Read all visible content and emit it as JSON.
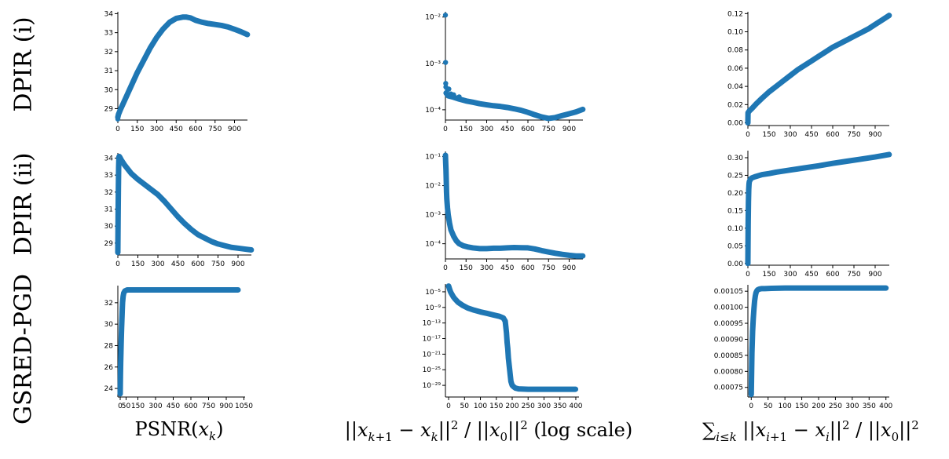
{
  "row_labels": [
    "DPIR (i)",
    "DPIR (ii)",
    "GSRED-PGD"
  ],
  "column_labels": [
    "PSNR(x_k)",
    "||x_{k+1} − x_k||² / ||x_0||² (log scale)",
    "∑_{i≤k} ||x_{i+1} − x_i||² / ||x_0||²"
  ],
  "colors": {
    "series": "#1f77b4",
    "axis": "#000000",
    "background": "#ffffff"
  },
  "chart_data": [
    {
      "id": "dpir-i-psnr",
      "type": "line",
      "row": "DPIR (i)",
      "column": "PSNR(x_k)",
      "xlim": [
        0,
        1000
      ],
      "ylim": [
        28.4,
        34.1
      ],
      "yscale": "linear",
      "xticks": [
        0,
        150,
        300,
        450,
        600,
        750,
        900
      ],
      "yticks": [
        29,
        30,
        31,
        32,
        33,
        34
      ],
      "ytick_labels": [
        "29",
        "30",
        "31",
        "32",
        "33",
        "34"
      ],
      "curve_x": [
        0,
        5,
        20,
        50,
        100,
        150,
        200,
        250,
        300,
        350,
        400,
        450,
        500,
        530,
        560,
        600,
        650,
        700,
        750,
        800,
        850,
        900,
        950,
        999
      ],
      "curve_y": [
        28.55,
        28.7,
        28.95,
        29.4,
        30.15,
        30.9,
        31.55,
        32.2,
        32.75,
        33.2,
        33.55,
        33.75,
        33.82,
        33.82,
        33.78,
        33.65,
        33.55,
        33.48,
        33.43,
        33.38,
        33.3,
        33.18,
        33.05,
        32.9
      ],
      "points": [
        [
          0,
          28.45
        ]
      ]
    },
    {
      "id": "dpir-i-diff",
      "type": "line",
      "row": "DPIR (i)",
      "column": "||x_{k+1} − x_k||² / ||x_0||² (log scale)",
      "xlim": [
        0,
        1000
      ],
      "ylim": [
        6e-05,
        0.013
      ],
      "yscale": "log",
      "xticks": [
        0,
        150,
        300,
        450,
        600,
        750,
        900
      ],
      "yticks": [
        0.0001,
        0.001,
        0.01
      ],
      "ytick_labels": [
        "10⁻⁴",
        "10⁻³",
        "10⁻²"
      ],
      "curve_x": [
        5,
        20,
        50,
        100,
        150,
        200,
        250,
        300,
        350,
        400,
        450,
        500,
        550,
        600,
        650,
        700,
        750,
        800,
        850,
        900,
        950,
        999
      ],
      "curve_y": [
        0.00023,
        0.0002,
        0.00019,
        0.00017,
        0.000155,
        0.000145,
        0.000135,
        0.000128,
        0.000122,
        0.000118,
        0.000112,
        0.000105,
        9.75e-05,
        8.8e-05,
        7.8e-05,
        7e-05,
        6.5e-05,
        6.8e-05,
        7.5e-05,
        8.2e-05,
        9e-05,
        0.000102
      ],
      "points": [
        [
          0,
          0.011
        ],
        [
          1,
          0.00105
        ],
        [
          2,
          0.00037
        ],
        [
          3,
          0.00031
        ],
        [
          15,
          0.00027
        ],
        [
          25,
          0.00028
        ],
        [
          40,
          0.00022
        ],
        [
          60,
          0.00021
        ],
        [
          100,
          0.00019
        ]
      ]
    },
    {
      "id": "dpir-i-cum",
      "type": "line",
      "row": "DPIR (i)",
      "column": "∑_{i≤k} ||x_{i+1} − x_i||² / ||x_0||²",
      "xlim": [
        0,
        1000
      ],
      "ylim": [
        -0.003,
        0.122
      ],
      "yscale": "linear",
      "xticks": [
        0,
        150,
        300,
        450,
        600,
        750,
        900
      ],
      "yticks": [
        0,
        0.02,
        0.04,
        0.06,
        0.08,
        0.1,
        0.12
      ],
      "ytick_labels": [
        "0.00",
        "0.02",
        "0.04",
        "0.06",
        "0.08",
        "0.10",
        "0.12"
      ],
      "curve_x": [
        0,
        1,
        10,
        30,
        60,
        100,
        150,
        200,
        250,
        300,
        350,
        400,
        450,
        500,
        550,
        600,
        650,
        700,
        750,
        800,
        850,
        900,
        950,
        999
      ],
      "curve_y": [
        0.0,
        0.011,
        0.013,
        0.016,
        0.021,
        0.027,
        0.034,
        0.04,
        0.046,
        0.052,
        0.058,
        0.063,
        0.068,
        0.073,
        0.078,
        0.083,
        0.087,
        0.091,
        0.095,
        0.099,
        0.103,
        0.108,
        0.113,
        0.118
      ],
      "points": [
        [
          0,
          0.0
        ]
      ]
    },
    {
      "id": "dpir-ii-psnr",
      "type": "line",
      "row": "DPIR (ii)",
      "column": "PSNR(x_k)",
      "xlim": [
        0,
        1000
      ],
      "ylim": [
        28.3,
        34.3
      ],
      "yscale": "linear",
      "xticks": [
        0,
        150,
        300,
        450,
        600,
        750,
        900
      ],
      "yticks": [
        29,
        30,
        31,
        32,
        33,
        34
      ],
      "ytick_labels": [
        "29",
        "30",
        "31",
        "32",
        "33",
        "34"
      ],
      "curve_x": [
        0,
        2,
        4,
        6,
        8,
        10,
        15,
        25,
        50,
        100,
        150,
        200,
        250,
        300,
        350,
        400,
        450,
        500,
        550,
        600,
        650,
        700,
        750,
        800,
        850,
        900,
        950,
        999
      ],
      "curve_y": [
        28.45,
        30.55,
        32.2,
        33.45,
        34.05,
        34.1,
        34.05,
        33.9,
        33.6,
        33.1,
        32.75,
        32.45,
        32.15,
        31.85,
        31.45,
        31.0,
        30.55,
        30.15,
        29.8,
        29.5,
        29.3,
        29.1,
        28.95,
        28.85,
        28.75,
        28.7,
        28.65,
        28.6
      ],
      "points": [
        [
          0,
          28.45
        ],
        [
          2,
          30.55
        ],
        [
          4,
          32.2
        ],
        [
          6,
          33.45
        ],
        [
          8,
          34.05
        ]
      ]
    },
    {
      "id": "dpir-ii-diff",
      "type": "line",
      "row": "DPIR (ii)",
      "column": "||x_{k+1} − x_k||² / ||x_0||² (log scale)",
      "xlim": [
        0,
        1000
      ],
      "ylim": [
        3e-05,
        0.15
      ],
      "yscale": "log",
      "xticks": [
        0,
        150,
        300,
        450,
        600,
        750,
        900
      ],
      "yticks": [
        0.0001,
        0.001,
        0.01,
        0.1
      ],
      "ytick_labels": [
        "10⁻⁴",
        "10⁻³",
        "10⁻²",
        "10⁻¹"
      ],
      "curve_x": [
        0,
        2,
        4,
        6,
        8,
        10,
        15,
        20,
        30,
        40,
        60,
        80,
        100,
        130,
        160,
        200,
        250,
        300,
        350,
        400,
        450,
        500,
        550,
        600,
        650,
        700,
        750,
        800,
        850,
        900,
        950,
        999
      ],
      "curve_y": [
        0.11,
        0.06,
        0.035,
        0.015,
        0.006,
        0.0035,
        0.0017,
        0.001,
        0.0005,
        0.0003,
        0.00018,
        0.000125,
        0.0001,
        8.5e-05,
        7.8e-05,
        7.2e-05,
        6.8e-05,
        6.8e-05,
        7e-05,
        7e-05,
        7.2e-05,
        7.4e-05,
        7.3e-05,
        7.2e-05,
        6.6e-05,
        5.8e-05,
        5.2e-05,
        4.7e-05,
        4.3e-05,
        4e-05,
        3.8e-05,
        3.8e-05
      ],
      "points": [
        [
          0,
          0.11
        ],
        [
          2,
          0.06
        ],
        [
          4,
          0.035
        ],
        [
          6,
          0.015
        ],
        [
          8,
          0.006
        ],
        [
          10,
          0.0035
        ],
        [
          15,
          0.0017
        ],
        [
          20,
          0.001
        ]
      ]
    },
    {
      "id": "dpir-ii-cum",
      "type": "line",
      "row": "DPIR (ii)",
      "column": "∑_{i≤k} ||x_{i+1} − x_i||² / ||x_0||²",
      "xlim": [
        0,
        1000
      ],
      "ylim": [
        -0.005,
        0.32
      ],
      "yscale": "linear",
      "xticks": [
        0,
        150,
        300,
        450,
        600,
        750,
        900
      ],
      "yticks": [
        0,
        0.05,
        0.1,
        0.15,
        0.2,
        0.25,
        0.3
      ],
      "ytick_labels": [
        "0.00",
        "0.05",
        "0.10",
        "0.15",
        "0.20",
        "0.25",
        "0.30"
      ],
      "curve_x": [
        0,
        2,
        4,
        6,
        8,
        10,
        15,
        20,
        30,
        50,
        100,
        150,
        200,
        300,
        400,
        500,
        600,
        700,
        800,
        900,
        999
      ],
      "curve_y": [
        0.0,
        0.115,
        0.175,
        0.21,
        0.225,
        0.232,
        0.236,
        0.24,
        0.243,
        0.246,
        0.252,
        0.255,
        0.259,
        0.265,
        0.271,
        0.277,
        0.284,
        0.29,
        0.296,
        0.302,
        0.309
      ],
      "points": [
        [
          0,
          0.0
        ],
        [
          2,
          0.115
        ],
        [
          4,
          0.175
        ],
        [
          6,
          0.21
        ],
        [
          8,
          0.225
        ]
      ]
    },
    {
      "id": "gsred-psnr",
      "type": "line",
      "row": "GSRED-PGD",
      "column": "PSNR(x_k)",
      "xlim": [
        -20,
        1060
      ],
      "ylim": [
        23.2,
        33.6
      ],
      "yscale": "linear",
      "xticks": [
        0,
        50,
        150,
        300,
        450,
        600,
        750,
        900,
        1050
      ],
      "xtick_labels": [
        "0",
        "50",
        "150",
        "300",
        "450",
        "600",
        "750",
        "900",
        "1050"
      ],
      "yticks": [
        24,
        26,
        28,
        30,
        32
      ],
      "ytick_labels": [
        "24",
        "26",
        "28",
        "30",
        "32"
      ],
      "curve_x": [
        0,
        2,
        4,
        6,
        8,
        10,
        12,
        14,
        16,
        18,
        20,
        25,
        30,
        40,
        50,
        60,
        80,
        100,
        200,
        400,
        600,
        800,
        1000
      ],
      "curve_y": [
        23.5,
        25.2,
        26.4,
        27.3,
        28.2,
        29.0,
        29.7,
        30.3,
        30.9,
        31.5,
        32.0,
        32.6,
        32.9,
        33.1,
        33.15,
        33.2,
        33.2,
        33.2,
        33.2,
        33.2,
        33.2,
        33.2,
        33.2
      ],
      "points": [
        [
          0,
          23.5
        ],
        [
          2,
          25.2
        ],
        [
          4,
          26.4
        ],
        [
          6,
          27.3
        ],
        [
          8,
          28.2
        ],
        [
          10,
          29.0
        ],
        [
          12,
          29.7
        ],
        [
          14,
          30.3
        ],
        [
          16,
          30.9
        ],
        [
          18,
          31.5
        ],
        [
          20,
          32.0
        ],
        [
          25,
          32.6
        ],
        [
          30,
          32.9
        ]
      ]
    },
    {
      "id": "gsred-diff",
      "type": "line",
      "row": "GSRED-PGD",
      "column": "||x_{k+1} − x_k||² / ||x_0||² (log scale)",
      "xlim": [
        -10,
        410
      ],
      "ylim": [
        1e-32,
        0.001
      ],
      "yscale": "log",
      "xticks": [
        0,
        50,
        100,
        150,
        200,
        250,
        300,
        350,
        400
      ],
      "yticks": [
        1e-29,
        1e-25,
        1e-21,
        1e-17,
        1e-13,
        1e-09,
        1e-05
      ],
      "ytick_labels": [
        "10⁻²⁹",
        "10⁻²⁵",
        "10⁻²¹",
        "10⁻¹⁷",
        "10⁻¹³",
        "10⁻⁹",
        "10⁻⁵"
      ],
      "curve_x": [
        0,
        3,
        6,
        10,
        15,
        20,
        30,
        45,
        60,
        80,
        100,
        120,
        140,
        160,
        172,
        178,
        180,
        182,
        184,
        186,
        188,
        190,
        192,
        194,
        196,
        198,
        200,
        205,
        210,
        220,
        250,
        300,
        350,
        399
      ],
      "curve_y": [
        0.0003,
        5e-05,
        1e-05,
        2.5e-06,
        5e-07,
        1.5e-07,
        2e-08,
        3e-09,
        7e-10,
        2e-10,
        7e-11,
        3e-11,
        1.2e-11,
        5e-12,
        2e-12,
        3e-13,
        1e-14,
        3e-16,
        1e-18,
        3e-20,
        1e-22,
        3e-24,
        1e-25,
        3e-27,
        1e-28,
        3e-29,
        1e-29,
        4e-30,
        2e-30,
        1.2e-30,
        1e-30,
        1e-30,
        1e-30,
        1e-30
      ],
      "points": [
        [
          0,
          0.0003
        ],
        [
          3,
          5e-05
        ],
        [
          6,
          1e-05
        ],
        [
          180,
          1e-14
        ],
        [
          182,
          3e-16
        ],
        [
          184,
          1e-18
        ],
        [
          186,
          3e-20
        ],
        [
          188,
          1e-22
        ],
        [
          190,
          3e-24
        ],
        [
          194,
          3e-27
        ]
      ]
    },
    {
      "id": "gsred-cum",
      "type": "line",
      "row": "GSRED-PGD",
      "column": "∑_{i≤k} ||x_{i+1} − x_i||² / ||x_0||²",
      "xlim": [
        -10,
        410
      ],
      "ylim": [
        0.00072,
        0.00107
      ],
      "yscale": "linear",
      "xticks": [
        0,
        50,
        100,
        150,
        200,
        250,
        300,
        350,
        400
      ],
      "yticks": [
        0.00075,
        0.0008,
        0.00085,
        0.0009,
        0.00095,
        0.001,
        0.00105
      ],
      "ytick_labels": [
        "0.00075",
        "0.00080",
        "0.00085",
        "0.00090",
        "0.00095",
        "0.00100",
        "0.00105"
      ],
      "curve_x": [
        0,
        2,
        4,
        6,
        8,
        10,
        12,
        14,
        16,
        18,
        20,
        25,
        30,
        40,
        60,
        100,
        200,
        300,
        400
      ],
      "curve_y": [
        0.000728,
        0.000858,
        0.000925,
        0.000965,
        0.000995,
        0.00102,
        0.001035,
        0.001045,
        0.00105,
        0.001053,
        0.001055,
        0.001057,
        0.001058,
        0.001058,
        0.001059,
        0.00106,
        0.00106,
        0.00106,
        0.00106
      ],
      "points": [
        [
          0,
          0.000728
        ],
        [
          2,
          0.000858
        ],
        [
          4,
          0.000925
        ],
        [
          6,
          0.000965
        ],
        [
          8,
          0.000995
        ],
        [
          10,
          0.00102
        ],
        [
          12,
          0.001035
        ]
      ]
    }
  ]
}
